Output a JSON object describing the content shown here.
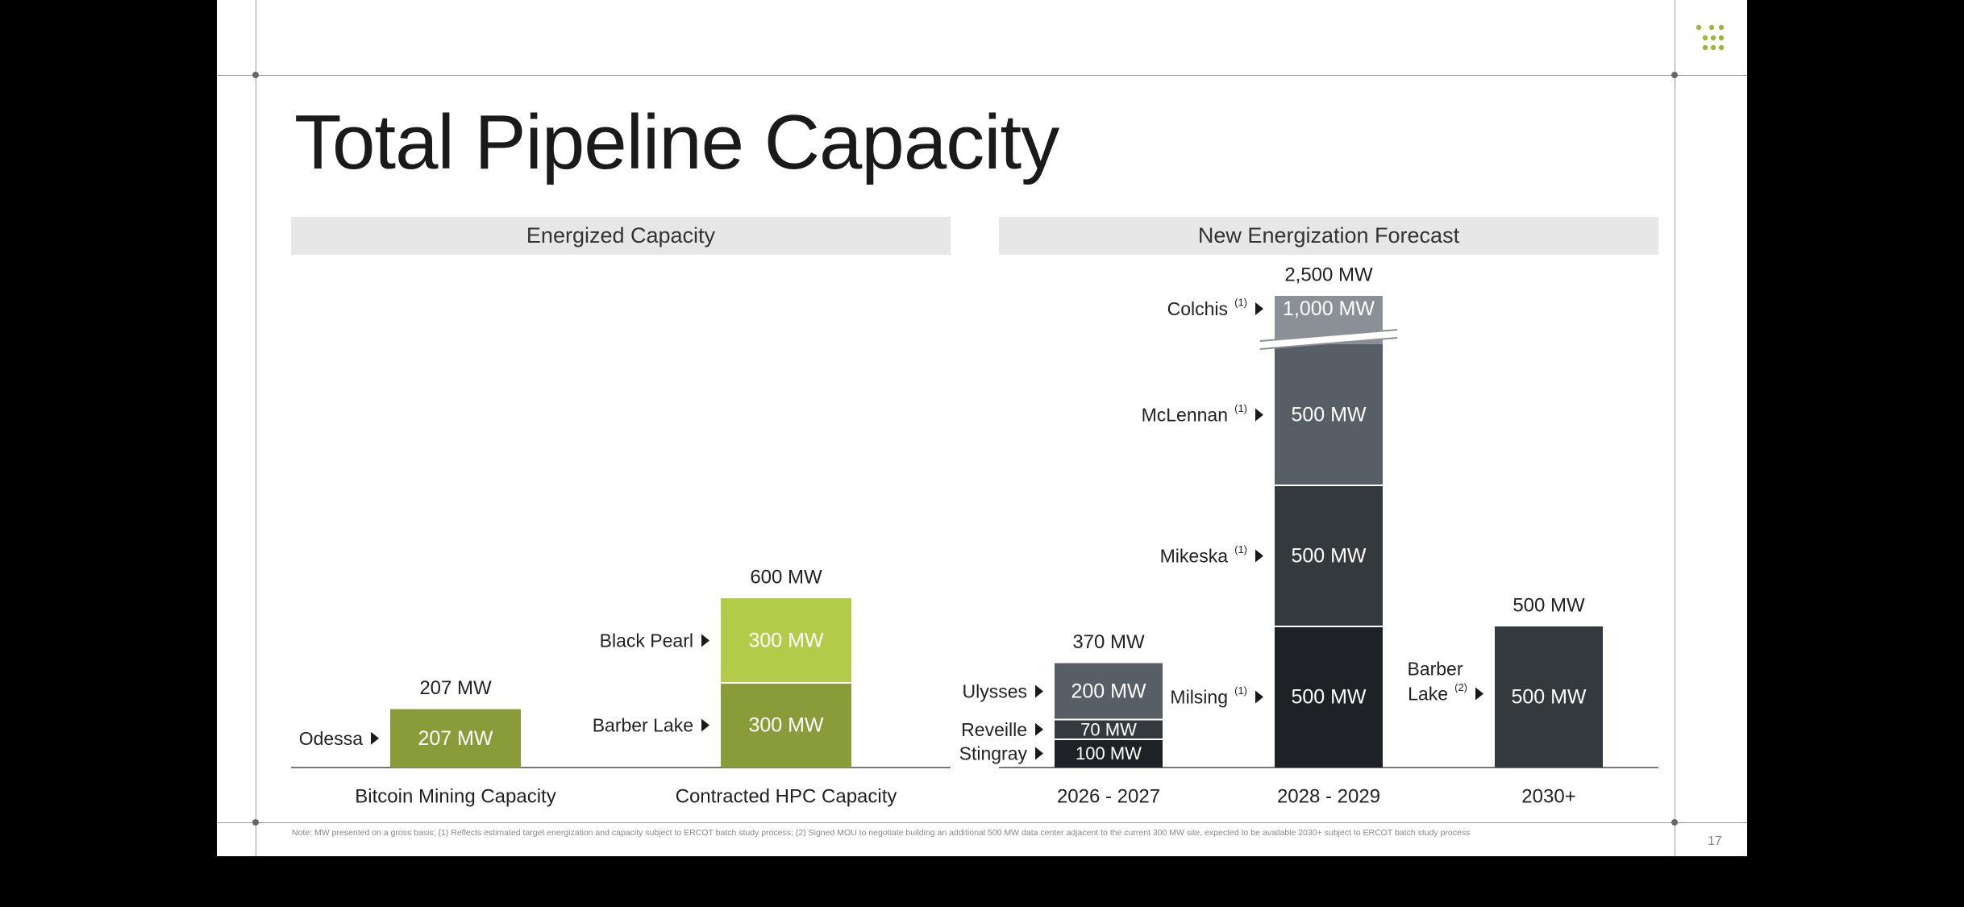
{
  "slide": {
    "title": "Total Pipeline Capacity",
    "page_number": "17",
    "footnote": "Note: MW presented on a gross basis; (1) Reflects estimated target energization and capacity subject to ERCOT batch study process; (2) Signed MOU to negotiate building an additional 500 MW data center adjacent to the current 300 MW site, expected to be available 2030+ subject to ERCOT batch study process",
    "logo_icon": "dot-grid-logo-icon",
    "accent_color": "#9bb83a"
  },
  "panels": {
    "left": "Energized Capacity",
    "right": "New Energization Forecast"
  },
  "chart_data": {
    "type": "bar",
    "stacked": true,
    "unit": "MW",
    "axis_break_note": "2028 - 2029 bar has a broken axis between the 1,000 MW Colchis segment and the rest",
    "categories": [
      {
        "label": "Bitcoin Mining Capacity",
        "panel": "left",
        "total": "207 MW",
        "segments": [
          {
            "site": "Odessa",
            "sup": "",
            "value": 207,
            "text": "207 MW",
            "color": "#8a9c3a",
            "text_color": "#ffffff"
          }
        ]
      },
      {
        "label": "Contracted HPC Capacity",
        "panel": "left",
        "total": "600 MW",
        "segments": [
          {
            "site": "Barber Lake",
            "sup": "",
            "value": 300,
            "text": "300 MW",
            "color": "#8a9c3a",
            "text_color": "#ffffff"
          },
          {
            "site": "Black Pearl",
            "sup": "",
            "value": 300,
            "text": "300 MW",
            "color": "#b2cc4a",
            "text_color": "#ffffff"
          }
        ]
      },
      {
        "label": "2026 - 2027",
        "panel": "right",
        "total": "370 MW",
        "segments": [
          {
            "site": "Stingray",
            "sup": "",
            "value": 100,
            "text": "100 MW",
            "color": "#1e2226",
            "text_color": "#ffffff"
          },
          {
            "site": "Reveille",
            "sup": "",
            "value": 70,
            "text": "70 MW",
            "color": "#34393e",
            "text_color": "#ffffff"
          },
          {
            "site": "Ulysses",
            "sup": "",
            "value": 200,
            "text": "200 MW",
            "color": "#585e66",
            "text_color": "#ffffff"
          }
        ]
      },
      {
        "label": "2028 - 2029",
        "panel": "right",
        "total": "2,500 MW",
        "segments": [
          {
            "site": "Milsing",
            "sup": "(1)",
            "value": 500,
            "text": "500 MW",
            "color": "#1e2226",
            "text_color": "#ffffff"
          },
          {
            "site": "Mikeska",
            "sup": "(1)",
            "value": 500,
            "text": "500 MW",
            "color": "#34393e",
            "text_color": "#ffffff"
          },
          {
            "site": "McLennan",
            "sup": "(1)",
            "value": 500,
            "text": "500 MW",
            "color": "#585e66",
            "text_color": "#ffffff"
          },
          {
            "site": "Colchis",
            "sup": "(1)",
            "value": 1000,
            "text": "1,000 MW",
            "color": "#8a9096",
            "text_color": "#ffffff",
            "broken": true
          }
        ]
      },
      {
        "label": "2030+",
        "panel": "right",
        "total": "500 MW",
        "segments": [
          {
            "site": "Barber Lake",
            "sup": "(2)",
            "value": 500,
            "text": "500 MW",
            "color": "#34393e",
            "text_color": "#ffffff"
          }
        ]
      }
    ]
  }
}
